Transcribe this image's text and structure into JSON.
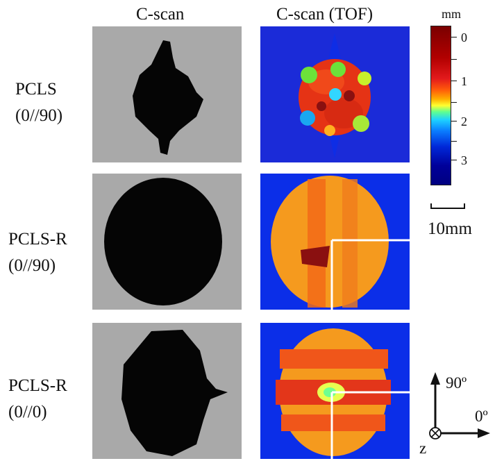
{
  "headers": {
    "cscan": "C-scan",
    "tof": "C-scan (TOF)"
  },
  "rows": [
    {
      "line1": "PCLS",
      "line2": "(0//90)"
    },
    {
      "line1": "PCLS-R",
      "line2": "(0//90)"
    },
    {
      "line1": "PCLS-R",
      "line2": "(0//0)"
    }
  ],
  "colorbar": {
    "unit": "mm",
    "ticks": [
      "0",
      "1",
      "2",
      "3"
    ],
    "colors": {
      "top": "#7a0000",
      "mid": "#ffff30",
      "bottom": "#000080"
    }
  },
  "scalebar": {
    "label": "10mm"
  },
  "axes": {
    "y_label": "90º",
    "x_label": "0º",
    "z_label": "z"
  }
}
